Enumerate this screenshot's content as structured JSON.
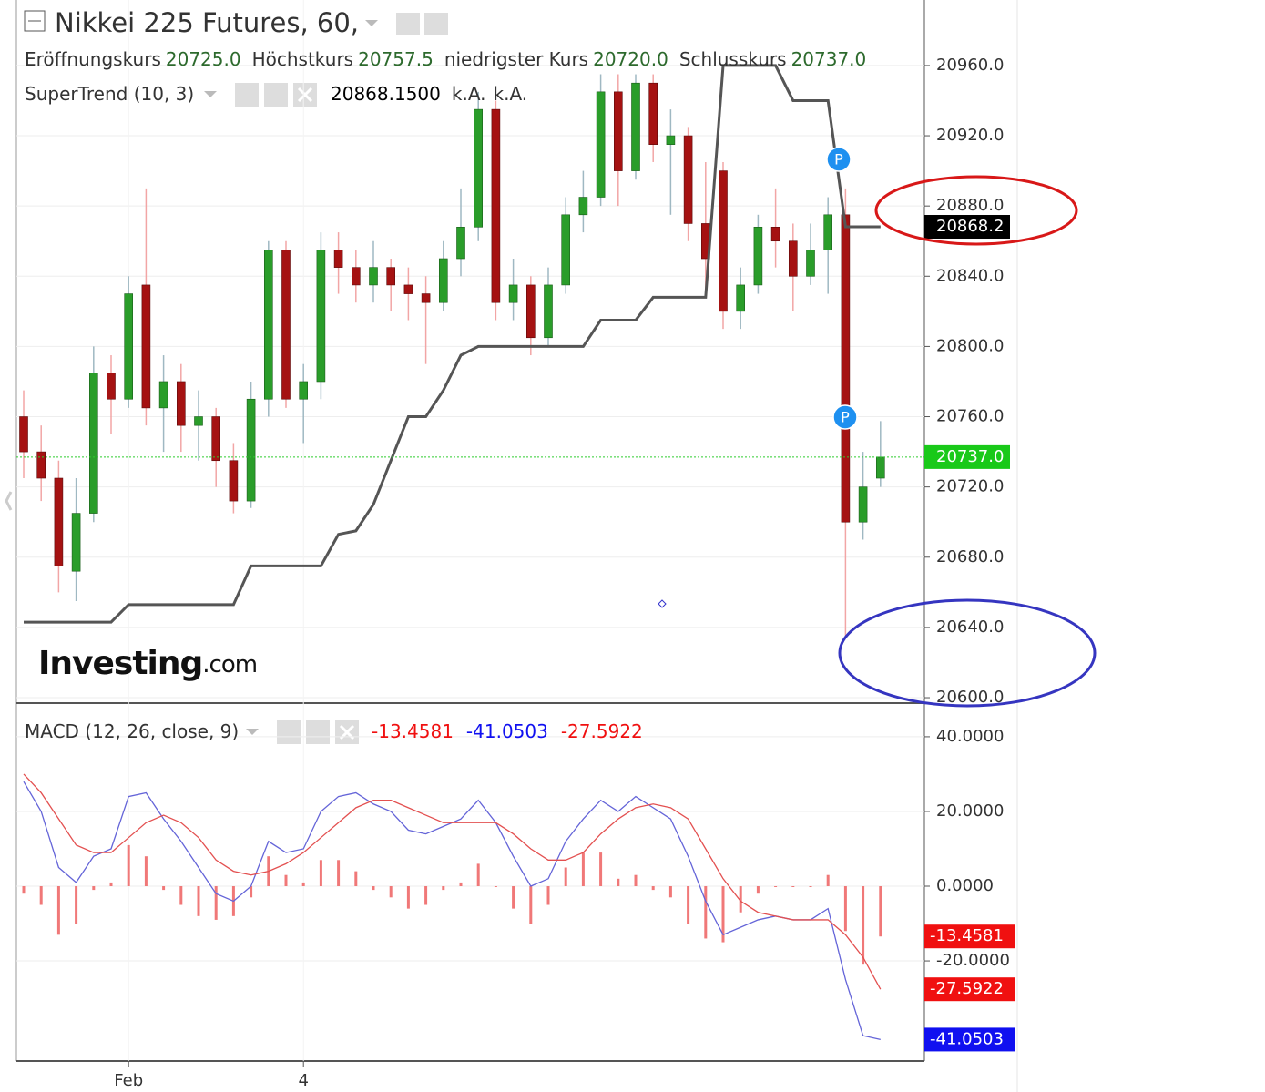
{
  "chart_data": [
    {
      "type": "candlestick",
      "title": "Nikkei 225 Futures, 60,",
      "ohlc_legend": {
        "labels": [
          "Eröffnungskurs",
          "Höchstkurs",
          "niedrigster Kurs",
          "Schlusskurs"
        ],
        "values": [
          20725,
          20757.5,
          20720,
          20737
        ],
        "value_labels": [
          "20725.0",
          "20757.5",
          "20720.0",
          "20737.0"
        ]
      },
      "categories": [
        null,
        null,
        null,
        null,
        null,
        null,
        "Feb",
        null,
        null,
        null,
        null,
        null,
        null,
        null,
        null,
        null,
        "4",
        null,
        null,
        null,
        null,
        null,
        null,
        null,
        null,
        null,
        null,
        null,
        null,
        null,
        null,
        null,
        null,
        null,
        null,
        null,
        null,
        null,
        null,
        null,
        null,
        null,
        null,
        null,
        null,
        null,
        null,
        null,
        null,
        null
      ],
      "open": [
        20760,
        20740,
        20725,
        20672,
        20705,
        20785,
        20770,
        20835,
        20765,
        20780,
        20755,
        20760,
        20735,
        20712,
        20770,
        20855,
        20770,
        20780,
        20855,
        20845,
        20835,
        20845,
        20835,
        20830,
        20825,
        20850,
        20868,
        20935,
        20825,
        20835,
        20805,
        20835,
        20875,
        20885,
        20945,
        20900,
        20950,
        20915,
        20920,
        20870,
        20900,
        20820,
        20835,
        20868,
        20860,
        20840,
        20855,
        20875,
        20700,
        20725
      ],
      "high": [
        20775,
        20755,
        20735,
        20725,
        20800,
        20795,
        20840,
        20890,
        20795,
        20790,
        20775,
        20765,
        20745,
        20780,
        20860,
        20860,
        20790,
        20865,
        20865,
        20855,
        20860,
        20850,
        20845,
        20840,
        20860,
        20890,
        20945,
        20940,
        20850,
        20840,
        20845,
        20885,
        20900,
        20955,
        20955,
        20955,
        20955,
        20935,
        20925,
        20905,
        20905,
        20845,
        20875,
        20890,
        20870,
        20870,
        20885,
        20890,
        20740,
        20757.5
      ],
      "low": [
        20725,
        20712,
        20660,
        20655,
        20700,
        20750,
        20765,
        20755,
        20740,
        20740,
        20735,
        20720,
        20705,
        20708,
        20760,
        20765,
        20745,
        20770,
        20830,
        20825,
        20825,
        20820,
        20815,
        20790,
        20820,
        20840,
        20860,
        20815,
        20815,
        20795,
        20800,
        20830,
        20865,
        20880,
        20880,
        20895,
        20905,
        20875,
        20860,
        20830,
        20810,
        20810,
        20830,
        20845,
        20820,
        20835,
        20830,
        20635,
        20690,
        20720
      ],
      "close": [
        20740,
        20725,
        20675,
        20705,
        20785,
        20770,
        20830,
        20765,
        20780,
        20755,
        20760,
        20735,
        20712,
        20770,
        20855,
        20770,
        20780,
        20855,
        20845,
        20835,
        20845,
        20835,
        20830,
        20825,
        20850,
        20868,
        20935,
        20825,
        20835,
        20805,
        20835,
        20875,
        20885,
        20945,
        20900,
        20950,
        20915,
        20920,
        20870,
        20850,
        20820,
        20835,
        20868,
        20860,
        20840,
        20855,
        20875,
        20700,
        20720,
        20737
      ],
      "close_badge": "20737.0",
      "up_color": "#2a9d2a",
      "down_color": "#a51212",
      "up_wick_color": "#9fb8c2",
      "down_wick_color": "#f2a5a5",
      "indicator": {
        "name": "SuperTrend (10, 3)",
        "color": "#555555",
        "values": [
          20643,
          20643,
          20643,
          20643,
          20643,
          20643,
          20653,
          20653,
          20653,
          20653,
          20653,
          20653,
          20653,
          20675,
          20675,
          20675,
          20675,
          20675,
          20693,
          20695,
          20710,
          20735,
          20760,
          20760,
          20775,
          20795,
          20800,
          20800,
          20800,
          20800,
          20800,
          20800,
          20800,
          20815,
          20815,
          20815,
          20828,
          20828,
          20828,
          20828,
          20960,
          20960,
          20960,
          20960,
          20940,
          20940,
          20940,
          20868.15,
          20868.15,
          20868.15
        ],
        "last_value_label": "20868.1500",
        "badge_label": "20868.2",
        "extra_labels": [
          "k.A.",
          "k.A."
        ]
      },
      "markers": [
        "P",
        "P"
      ],
      "watermark": [
        "Investing",
        ".com"
      ],
      "ylim": [
        20596.9,
        20997.3
      ],
      "yticks": [
        {
          "value": 20600,
          "label": "20600.0"
        },
        {
          "value": 20640,
          "label": "20640.0"
        },
        {
          "value": 20680,
          "label": "20680.0"
        },
        {
          "value": 20720,
          "label": "20720.0"
        },
        {
          "value": 20760,
          "label": "20760.0"
        },
        {
          "value": 20800,
          "label": "20800.0"
        },
        {
          "value": 20840,
          "label": "20840.0"
        },
        {
          "value": 20880,
          "label": "20880.0"
        },
        {
          "value": 20920,
          "label": "20920.0"
        },
        {
          "value": 20960,
          "label": "20960.0"
        }
      ],
      "grid": true
    },
    {
      "type": "macd",
      "title": "MACD (12, 26, close, 9)",
      "series": [
        {
          "color": "#f07878",
          "values": [
            -2,
            -5,
            -13,
            -10,
            -1,
            1,
            11,
            8,
            -1,
            -5,
            -8,
            -9,
            -8,
            -3,
            8,
            3,
            1,
            7,
            7,
            4,
            -1,
            -3,
            -6,
            -5,
            -1,
            1,
            6,
            0,
            -6,
            -10,
            -5,
            5,
            9,
            9,
            2,
            3,
            -1,
            -3,
            -10,
            -14,
            -15,
            -7,
            -2,
            0,
            0,
            0,
            3,
            -12,
            -21,
            -13.4581
          ],
          "value_label": "-13.4581",
          "badge_color": "#f01010"
        },
        {
          "color": "#6464d8",
          "values": [
            28,
            20,
            5,
            1,
            8,
            10,
            24,
            25,
            18,
            12,
            5,
            -2,
            -4,
            0,
            12,
            9,
            10,
            20,
            24,
            25,
            22,
            20,
            15,
            14,
            16,
            18,
            23,
            17,
            8,
            0,
            2,
            12,
            18,
            23,
            20,
            24,
            21,
            18,
            8,
            -4,
            -13,
            -11,
            -9,
            -8,
            -9,
            -9,
            -6,
            -25,
            -40,
            -41.0503
          ],
          "value_label": "-41.0503",
          "badge_color": "#1010f0"
        },
        {
          "color": "#e35050",
          "values": [
            30,
            25,
            18,
            11,
            9,
            9,
            13,
            17,
            19,
            17,
            13,
            7,
            4,
            3,
            4,
            6,
            9,
            13,
            17,
            21,
            23,
            23,
            21,
            19,
            17,
            17,
            17,
            17,
            14,
            10,
            7,
            7,
            9,
            14,
            18,
            21,
            22,
            21,
            18,
            10,
            2,
            -4,
            -7,
            -8,
            -9,
            -9,
            -9,
            -13,
            -19,
            -27.5922
          ],
          "value_label": "-27.5922",
          "badge_color": "#f01010"
        }
      ],
      "ylim": [
        -46.8,
        49.0
      ],
      "yticks": [
        {
          "value": 40,
          "label": "40.0000"
        },
        {
          "value": 20,
          "label": "20.0000"
        },
        {
          "value": 0,
          "label": "0.0000"
        },
        {
          "value": -20,
          "label": "-20.0000"
        }
      ],
      "grid": true
    }
  ]
}
